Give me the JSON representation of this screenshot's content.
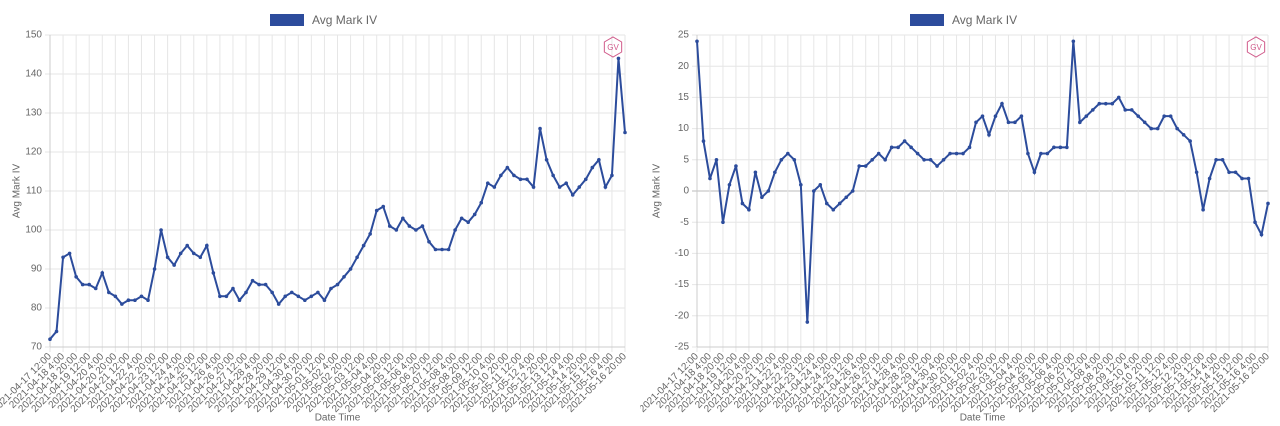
{
  "chart_data": [
    {
      "type": "line",
      "legend_position": "top",
      "grid": true,
      "watermark": "GV",
      "series": [
        {
          "name": "Avg Mark IV",
          "color": "#2c4c9c",
          "values": [
            72,
            74,
            93,
            94,
            88,
            86,
            86,
            85,
            89,
            84,
            83,
            81,
            82,
            82,
            83,
            82,
            90,
            100,
            93,
            91,
            94,
            96,
            94,
            93,
            96,
            89,
            83,
            83,
            85,
            82,
            84,
            87,
            86,
            86,
            84,
            81,
            83,
            84,
            83,
            82,
            83,
            84,
            82,
            85,
            86,
            88,
            90,
            93,
            96,
            99,
            105,
            106,
            101,
            100,
            103,
            101,
            100,
            101,
            97,
            95,
            95,
            95,
            100,
            103,
            102,
            104,
            107,
            112,
            111,
            114,
            116,
            114,
            113,
            113,
            111,
            126,
            118,
            114,
            111,
            112,
            109,
            111,
            113,
            116,
            118,
            111,
            114,
            144,
            125
          ]
        }
      ],
      "categories": [
        "2021-04-17 12:00",
        null,
        "2021-04-18 4:00",
        null,
        "2021-04-18 20:00",
        null,
        "2021-04-19 12:00",
        null,
        "2021-04-20 4:00",
        null,
        "2021-04-20 20:00",
        null,
        "2021-04-21 12:00",
        null,
        "2021-04-22 4:00",
        null,
        "2021-04-22 20:00",
        null,
        "2021-04-23 12:00",
        null,
        "2021-04-24 4:00",
        null,
        "2021-04-24 20:00",
        null,
        "2021-04-25 12:00",
        null,
        "2021-04-26 4:00",
        null,
        "2021-04-26 20:00",
        null,
        "2021-04-27 12:00",
        null,
        "2021-04-28 4:00",
        null,
        "2021-04-28 20:00",
        null,
        "2021-04-29 12:00",
        null,
        "2021-04-30 4:00",
        null,
        "2021-04-30 20:00",
        null,
        "2021-05-01 12:00",
        null,
        "2021-05-02 4:00",
        null,
        "2021-05-02 20:00",
        null,
        "2021-05-03 12:00",
        null,
        "2021-05-04 4:00",
        null,
        "2021-05-04 20:00",
        null,
        "2021-05-05 12:00",
        null,
        "2021-05-06 4:00",
        null,
        "2021-05-06 20:00",
        null,
        "2021-05-07 12:00",
        null,
        "2021-05-08 4:00",
        null,
        "2021-05-08 20:00",
        null,
        "2021-05-09 12:00",
        null,
        "2021-05-10 4:00",
        null,
        "2021-05-10 20:00",
        null,
        "2021-05-11 12:00",
        null,
        "2021-05-12 4:00",
        null,
        "2021-05-12 20:00",
        null,
        "2021-05-13 12:00",
        null,
        "2021-05-14 4:00",
        null,
        "2021-05-14 20:00",
        null,
        "2021-05-15 12:00",
        null,
        "2021-05-16 4:00",
        null,
        "2021-05-16 20:00"
      ],
      "x_label": "Date Time",
      "y_label": "Avg Mark IV",
      "ylim": [
        70,
        150
      ],
      "yticks": [
        70,
        80,
        90,
        100,
        110,
        120,
        130,
        140,
        150
      ]
    },
    {
      "type": "line",
      "legend_position": "top",
      "grid": true,
      "watermark": "GV",
      "series": [
        {
          "name": "Avg Mark IV",
          "color": "#2c4c9c",
          "values": [
            24,
            8,
            2,
            5,
            -5,
            1,
            4,
            -2,
            -3,
            3,
            -1,
            0,
            3,
            5,
            6,
            5,
            1,
            -21,
            0,
            1,
            -2,
            -3,
            -2,
            -1,
            0,
            4,
            4,
            5,
            6,
            5,
            7,
            7,
            8,
            7,
            6,
            5,
            5,
            4,
            5,
            6,
            6,
            6,
            7,
            11,
            12,
            9,
            12,
            14,
            11,
            11,
            12,
            6,
            3,
            6,
            6,
            7,
            7,
            7,
            24,
            11,
            12,
            13,
            14,
            14,
            14,
            15,
            13,
            13,
            12,
            11,
            10,
            10,
            12,
            12,
            10,
            9,
            8,
            3,
            -3,
            2,
            5,
            5,
            3,
            3,
            2,
            2,
            -5,
            -7,
            -2
          ]
        }
      ],
      "categories": [
        "2021-04-17 12:00",
        null,
        "2021-04-18 4:00",
        null,
        "2021-04-18 20:00",
        null,
        "2021-04-19 12:00",
        null,
        "2021-04-20 4:00",
        null,
        "2021-04-20 20:00",
        null,
        "2021-04-21 12:00",
        null,
        "2021-04-22 4:00",
        null,
        "2021-04-22 20:00",
        null,
        "2021-04-23 12:00",
        null,
        "2021-04-24 4:00",
        null,
        "2021-04-24 20:00",
        null,
        "2021-04-25 12:00",
        null,
        "2021-04-26 4:00",
        null,
        "2021-04-26 20:00",
        null,
        "2021-04-27 12:00",
        null,
        "2021-04-28 4:00",
        null,
        "2021-04-28 20:00",
        null,
        "2021-04-29 12:00",
        null,
        "2021-04-30 4:00",
        null,
        "2021-04-30 20:00",
        null,
        "2021-05-01 12:00",
        null,
        "2021-05-02 4:00",
        null,
        "2021-05-02 20:00",
        null,
        "2021-05-03 12:00",
        null,
        "2021-05-04 4:00",
        null,
        "2021-05-04 20:00",
        null,
        "2021-05-05 12:00",
        null,
        "2021-05-06 4:00",
        null,
        "2021-05-06 20:00",
        null,
        "2021-05-07 12:00",
        null,
        "2021-05-08 4:00",
        null,
        "2021-05-08 20:00",
        null,
        "2021-05-09 12:00",
        null,
        "2021-05-10 4:00",
        null,
        "2021-05-10 20:00",
        null,
        "2021-05-11 12:00",
        null,
        "2021-05-12 4:00",
        null,
        "2021-05-12 20:00",
        null,
        "2021-05-13 12:00",
        null,
        "2021-05-14 4:00",
        null,
        "2021-05-14 20:00",
        null,
        "2021-05-15 12:00",
        null,
        "2021-05-16 4:00",
        null,
        "2021-05-16 20:00"
      ],
      "x_label": "Date Time",
      "y_label": "Avg Mark IV",
      "ylim": [
        -25,
        25
      ],
      "yticks": [
        -25,
        -20,
        -15,
        -10,
        -5,
        0,
        5,
        10,
        15,
        20,
        25
      ]
    }
  ]
}
